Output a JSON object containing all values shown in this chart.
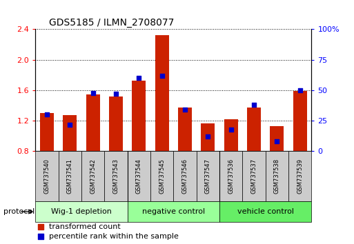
{
  "title": "GDS5185 / ILMN_2708077",
  "samples": [
    "GSM737540",
    "GSM737541",
    "GSM737542",
    "GSM737543",
    "GSM737544",
    "GSM737545",
    "GSM737546",
    "GSM737547",
    "GSM737536",
    "GSM737537",
    "GSM737538",
    "GSM737539"
  ],
  "transformed_count": [
    1.3,
    1.27,
    1.55,
    1.52,
    1.73,
    2.32,
    1.37,
    1.17,
    1.22,
    1.37,
    1.13,
    1.59
  ],
  "percentile_rank": [
    30,
    22,
    48,
    47,
    60,
    62,
    34,
    12,
    18,
    38,
    8,
    50
  ],
  "groups": [
    {
      "label": "Wig-1 depletion",
      "start": 0,
      "end": 4,
      "color": "#ccffcc"
    },
    {
      "label": "negative control",
      "start": 4,
      "end": 8,
      "color": "#99ff99"
    },
    {
      "label": "vehicle control",
      "start": 8,
      "end": 12,
      "color": "#66ee66"
    }
  ],
  "ylim_left": [
    0.8,
    2.4
  ],
  "ylim_right": [
    0,
    100
  ],
  "bar_color": "#cc2200",
  "dot_color": "#0000cc",
  "bar_bottom": 0.8,
  "bar_width": 0.6,
  "sample_row_color": "#cccccc",
  "legend_red_label": "transformed count",
  "legend_blue_label": "percentile rank within the sample",
  "protocol_label": "protocol"
}
